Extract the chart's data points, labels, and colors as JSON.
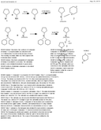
{
  "background_color": "#ffffff",
  "fig_width": 1.28,
  "fig_height": 1.65,
  "dpi": 100
}
